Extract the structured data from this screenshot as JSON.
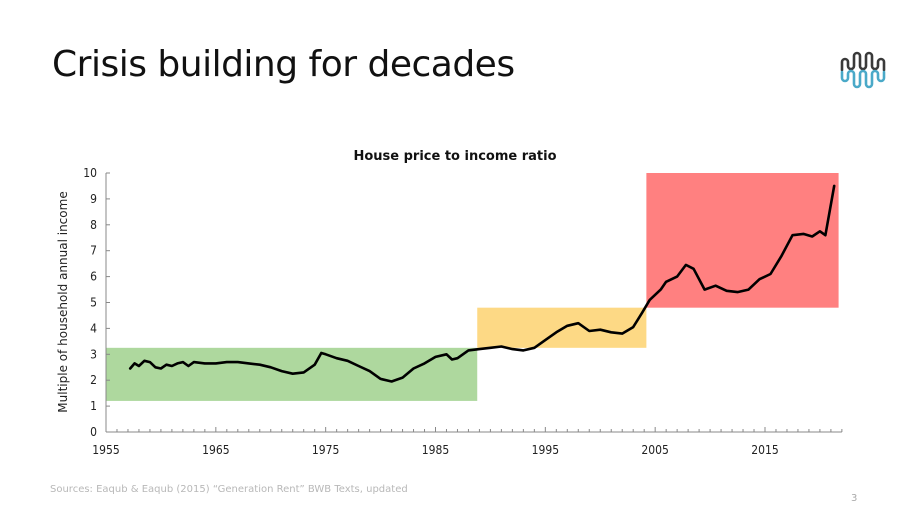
{
  "slide": {
    "title": "Crisis building for decades",
    "sources": "Sources: Eaqub & Eaqub (2015) “Generation Rent” BWB Texts, updated",
    "page_number": "3",
    "logo_icon": "wave-logo-icon",
    "colors": {
      "logo_top": "#3a3a3a",
      "logo_bottom": "#4aa9c8"
    }
  },
  "chart_data": {
    "type": "line",
    "title": "House price to income ratio",
    "xlabel": "",
    "ylabel": "Multiple of household annual income",
    "xlim": [
      1955,
      2022
    ],
    "ylim": [
      0,
      10
    ],
    "x_ticks": [
      "1955",
      "1965",
      "1975",
      "1985",
      "1995",
      "2005",
      "2015"
    ],
    "y_ticks": [
      "0",
      "1",
      "2",
      "3",
      "4",
      "5",
      "6",
      "7",
      "8",
      "9",
      "10"
    ],
    "grid": false,
    "legend": "none",
    "regions": [
      {
        "name": "green-region",
        "x": [
          1955,
          1988.8
        ],
        "y": [
          1.2,
          3.25
        ],
        "color": "#aed89e"
      },
      {
        "name": "yellow-region",
        "x": [
          1988.8,
          2004.2
        ],
        "y": [
          3.25,
          4.8
        ],
        "color": "#fdd985"
      },
      {
        "name": "red-region",
        "x": [
          2004.2,
          2021.7
        ],
        "y": [
          4.8,
          10
        ],
        "color": "#ff8080"
      }
    ],
    "series": [
      {
        "name": "House price to income ratio",
        "color": "#000000",
        "x": [
          1957.2,
          1957.6,
          1958,
          1958.5,
          1959,
          1959.5,
          1960,
          1960.5,
          1961,
          1961.5,
          1962,
          1962.5,
          1963,
          1964,
          1965,
          1966,
          1967,
          1968,
          1969,
          1970,
          1971,
          1972,
          1973,
          1974,
          1974.6,
          1975,
          1976,
          1977,
          1978,
          1979,
          1980,
          1981,
          1982,
          1983,
          1984,
          1985,
          1986,
          1986.5,
          1987,
          1988,
          1989,
          1990,
          1991,
          1992,
          1993,
          1994,
          1995,
          1996,
          1997,
          1998,
          1999,
          2000,
          2001,
          2002,
          2003,
          2003.8,
          2004.5,
          2005.5,
          2006,
          2007,
          2007.8,
          2008.5,
          2009.5,
          2010.5,
          2011.5,
          2012.5,
          2013.5,
          2014.5,
          2015.5,
          2016.5,
          2017.5,
          2018.5,
          2019.3,
          2020,
          2020.5,
          2021.3
        ],
        "values": [
          2.45,
          2.65,
          2.55,
          2.75,
          2.7,
          2.5,
          2.45,
          2.6,
          2.55,
          2.65,
          2.7,
          2.55,
          2.7,
          2.65,
          2.65,
          2.7,
          2.7,
          2.65,
          2.6,
          2.5,
          2.35,
          2.25,
          2.3,
          2.6,
          3.05,
          3.0,
          2.85,
          2.75,
          2.55,
          2.35,
          2.05,
          1.95,
          2.1,
          2.45,
          2.65,
          2.9,
          3.0,
          2.8,
          2.85,
          3.15,
          3.2,
          3.25,
          3.3,
          3.2,
          3.15,
          3.25,
          3.55,
          3.85,
          4.1,
          4.2,
          3.9,
          3.95,
          3.85,
          3.8,
          4.05,
          4.6,
          5.1,
          5.5,
          5.8,
          6.0,
          6.45,
          6.3,
          5.5,
          5.65,
          5.45,
          5.4,
          5.5,
          5.9,
          6.1,
          6.8,
          7.6,
          7.65,
          7.55,
          7.75,
          7.6,
          9.5
        ]
      }
    ]
  }
}
